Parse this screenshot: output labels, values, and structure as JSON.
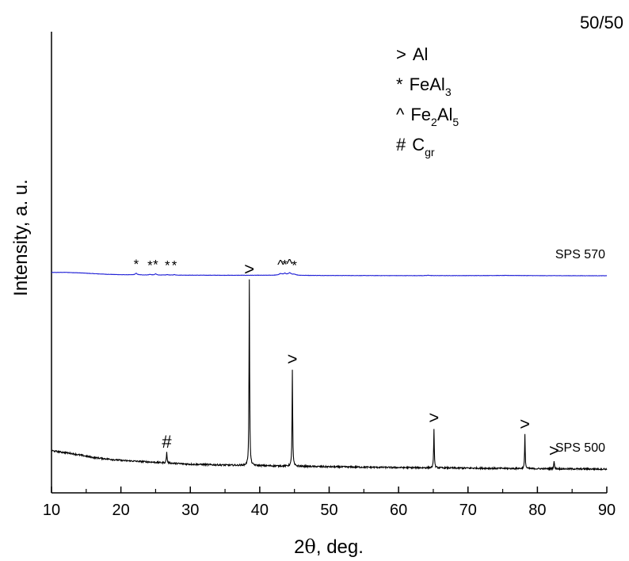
{
  "chart_data": {
    "type": "line",
    "corner_title": "50/50",
    "xlabel_main": "2",
    "xlabel_theta": "θ",
    "xlabel_rest": ", deg.",
    "ylabel": "Intensity, a. u.",
    "xlim": [
      10,
      90
    ],
    "xticks": [
      "10",
      "20",
      "30",
      "40",
      "50",
      "60",
      "70",
      "80",
      "90"
    ],
    "grid": false,
    "legend": {
      "placement": "top-right",
      "entries": [
        {
          "symbol": ">",
          "text": "Al",
          "sub1": "",
          "text2": "",
          "sub2": ""
        },
        {
          "symbol": "*",
          "text": "FeAl",
          "sub1": "3",
          "text2": "",
          "sub2": ""
        },
        {
          "symbol": "^",
          "text": "Fe",
          "sub1": "2",
          "text2": "Al",
          "sub2": "5"
        },
        {
          "symbol": "#",
          "text": "C",
          "sub1": "gr",
          "text2": "",
          "sub2": ""
        }
      ]
    },
    "series": [
      {
        "name": "SPS 570",
        "color": "#1f1fd6",
        "baseline": 1.0,
        "amplitude": 0.13,
        "background": [
          [
            10,
            0.13
          ],
          [
            12,
            0.135
          ],
          [
            14,
            0.115
          ],
          [
            16,
            0.085
          ],
          [
            18,
            0.058
          ],
          [
            20,
            0.042
          ],
          [
            24,
            0.03
          ],
          [
            30,
            0.022
          ],
          [
            36,
            0.018
          ],
          [
            42,
            0.018
          ],
          [
            50,
            0.01
          ],
          [
            60,
            0.005
          ],
          [
            70,
            0.006
          ],
          [
            76,
            0.012
          ],
          [
            80,
            0.004
          ],
          [
            90,
            0.0
          ]
        ],
        "noise": 0.006,
        "peaks": [
          {
            "x": 22.2,
            "h": 0.06,
            "w": 0.35,
            "marker": "*"
          },
          {
            "x": 24.2,
            "h": 0.025,
            "w": 0.3,
            "marker": "*"
          },
          {
            "x": 25.0,
            "h": 0.045,
            "w": 0.3,
            "marker": "*"
          },
          {
            "x": 26.7,
            "h": 0.02,
            "w": 0.3,
            "marker": "*"
          },
          {
            "x": 27.7,
            "h": 0.02,
            "w": 0.3,
            "marker": "*"
          },
          {
            "x": 43.0,
            "h": 0.06,
            "w": 0.55,
            "marker": "^"
          },
          {
            "x": 43.6,
            "h": 0.07,
            "w": 0.4,
            "marker": "*"
          },
          {
            "x": 44.3,
            "h": 0.09,
            "w": 0.55,
            "marker": "^"
          },
          {
            "x": 45.0,
            "h": 0.04,
            "w": 0.5,
            "marker": "*"
          },
          {
            "x": 64.3,
            "h": 0.015,
            "w": 0.35,
            "marker": ""
          }
        ],
        "label": "SPS 570"
      },
      {
        "name": "SPS 500",
        "color": "#000000",
        "baseline": 0.0,
        "amplitude": 1.0,
        "background": [
          [
            10,
            0.095
          ],
          [
            13,
            0.08
          ],
          [
            16,
            0.06
          ],
          [
            20,
            0.045
          ],
          [
            25,
            0.035
          ],
          [
            30,
            0.025
          ],
          [
            36,
            0.02
          ],
          [
            50,
            0.012
          ],
          [
            60,
            0.008
          ],
          [
            70,
            0.005
          ],
          [
            80,
            0.002
          ],
          [
            90,
            0.0
          ]
        ],
        "noise": 0.004,
        "peaks": [
          {
            "x": 26.6,
            "h": 0.055,
            "w": 0.12,
            "marker": "#"
          },
          {
            "x": 38.5,
            "h": 0.96,
            "w": 0.1,
            "marker": ">"
          },
          {
            "x": 44.7,
            "h": 0.5,
            "w": 0.1,
            "marker": ">"
          },
          {
            "x": 65.1,
            "h": 0.205,
            "w": 0.1,
            "marker": ">"
          },
          {
            "x": 78.2,
            "h": 0.175,
            "w": 0.1,
            "marker": ">"
          },
          {
            "x": 82.4,
            "h": 0.04,
            "w": 0.12,
            "marker": ">"
          }
        ],
        "label": "SPS 500"
      }
    ]
  }
}
